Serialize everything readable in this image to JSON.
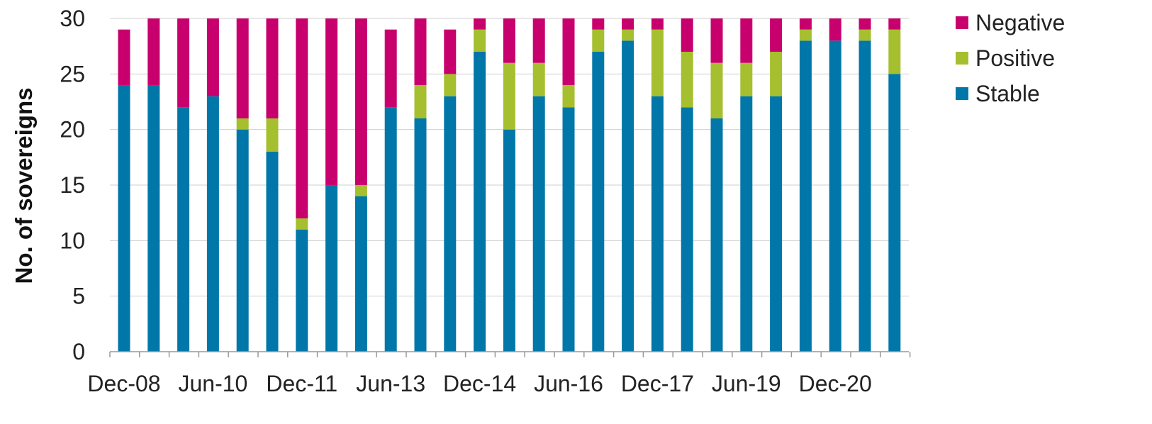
{
  "chart_data": {
    "type": "bar",
    "stacked": true,
    "ylabel": "No. of sovereigns",
    "xlabel": "",
    "ylim": [
      0,
      30
    ],
    "yticks": [
      0,
      5,
      10,
      15,
      20,
      25,
      30
    ],
    "grid": true,
    "legend_position": "top-right",
    "x_tick_labels": [
      "Dec-08",
      "Jun-10",
      "Dec-11",
      "Jun-13",
      "Dec-14",
      "Jun-16",
      "Dec-17",
      "Jun-19",
      "Dec-20"
    ],
    "series": [
      {
        "name": "Stable",
        "color": "#0077a8",
        "values": [
          24,
          24,
          22,
          23,
          20,
          18,
          11,
          15,
          14,
          22,
          21,
          23,
          27,
          20,
          23,
          22,
          27,
          28,
          23,
          22,
          21,
          23,
          23,
          28,
          28,
          28,
          25
        ]
      },
      {
        "name": "Positive",
        "color": "#a6bf2e",
        "values": [
          0,
          0,
          0,
          0,
          1,
          3,
          1,
          0,
          1,
          0,
          3,
          2,
          2,
          6,
          3,
          2,
          2,
          1,
          6,
          5,
          5,
          3,
          4,
          1,
          0,
          1,
          4
        ]
      },
      {
        "name": "Negative",
        "color": "#c8006e",
        "values": [
          5,
          6,
          8,
          7,
          9,
          9,
          18,
          15,
          15,
          7,
          6,
          4,
          1,
          4,
          4,
          6,
          1,
          1,
          1,
          3,
          4,
          4,
          3,
          1,
          2,
          1,
          1
        ]
      }
    ],
    "legend_order": [
      "Negative",
      "Positive",
      "Stable"
    ]
  }
}
